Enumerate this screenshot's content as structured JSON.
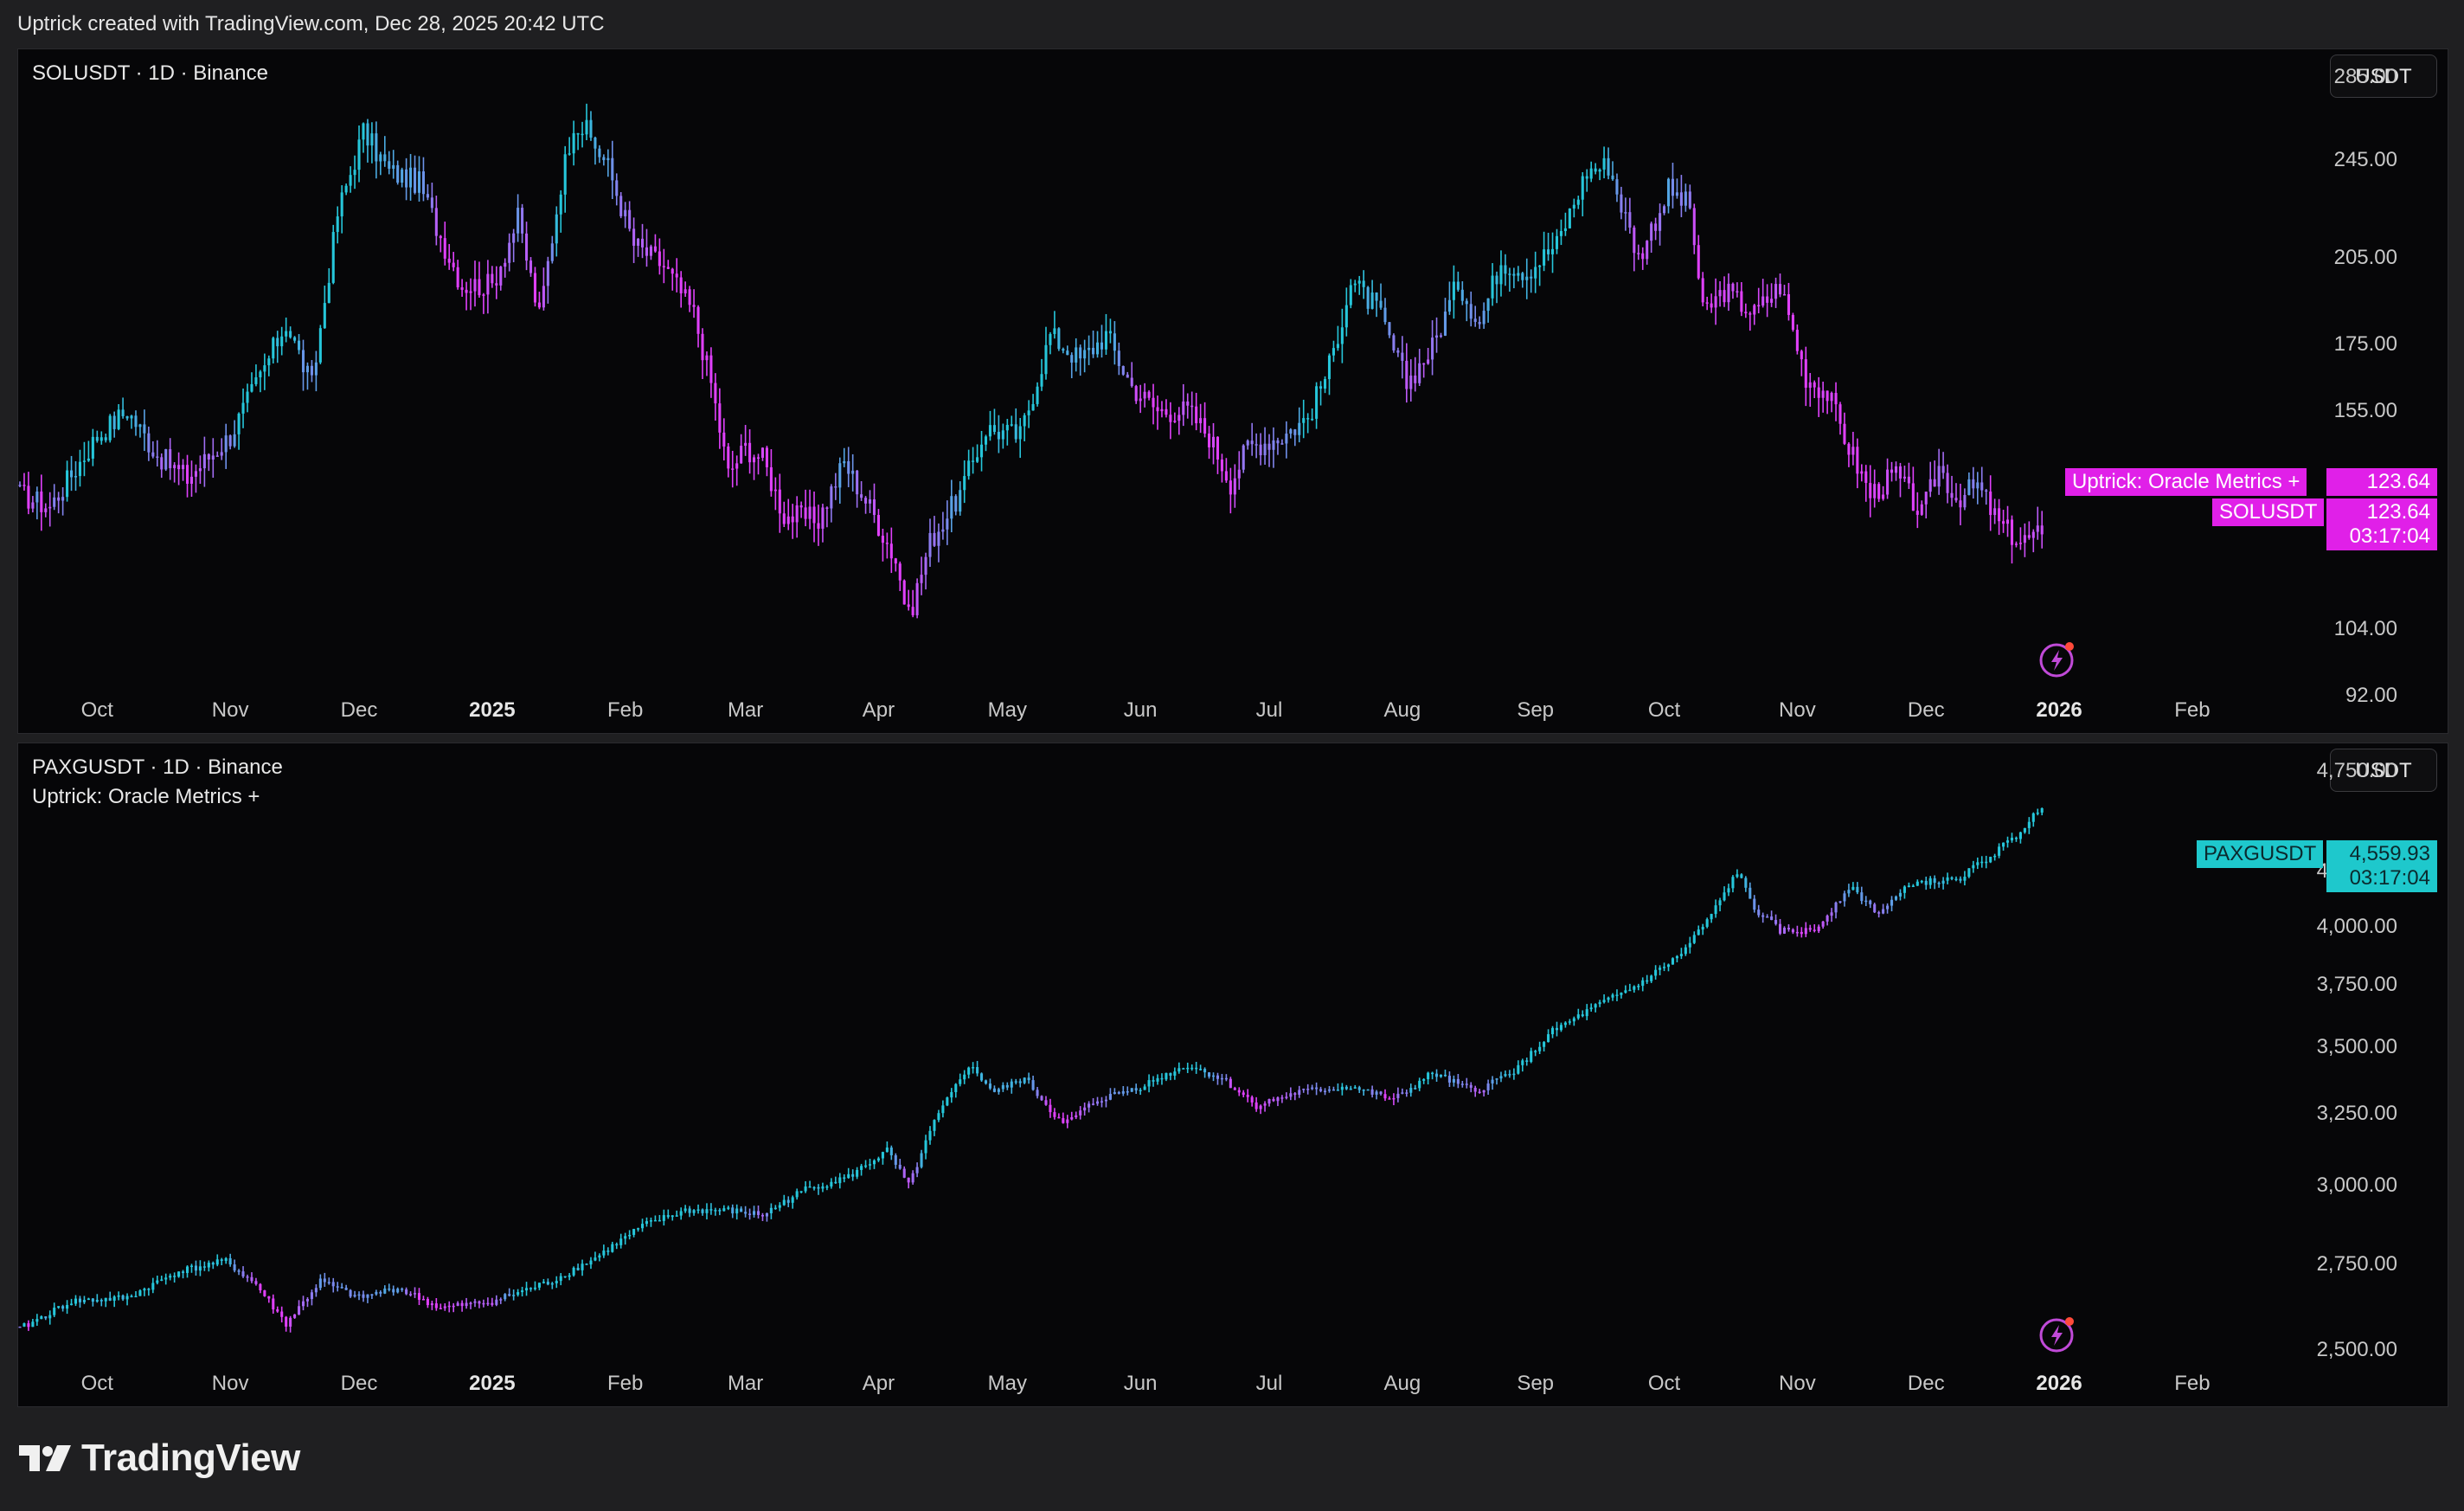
{
  "header": {
    "credit": "Uptrick created with TradingView.com, Dec 28, 2025 20:42 UTC"
  },
  "brand": {
    "name": "TradingView"
  },
  "colors": {
    "background": "#060608",
    "pink": "#e040fb",
    "violet": "#8c7cf0",
    "teal": "#26c6da",
    "sol_tag": "#e020e8",
    "paxg_tag": "#1ec8cc"
  },
  "icons": [
    "flash-icon",
    "tradingview-logo-icon"
  ],
  "chart_data": [
    {
      "type": "candlestick",
      "title": "SOLUSDT · 1D · Binance",
      "currency": "USDT",
      "scale": "log",
      "ylim": [
        86,
        300
      ],
      "y_ticks": [
        "285.00",
        "245.00",
        "205.00",
        "175.00",
        "155.00",
        "104.00",
        "92.00"
      ],
      "x_ticks": [
        "Oct",
        "Nov",
        "Dec",
        "2025",
        "Feb",
        "Mar",
        "Apr",
        "May",
        "Jun",
        "Jul",
        "Aug",
        "Sep",
        "Oct",
        "Nov",
        "Dec",
        "2026",
        "Feb"
      ],
      "x_ticks_bold": [
        "2025",
        "2026"
      ],
      "x_range": [
        "2024-09-13",
        "2026-02-25"
      ],
      "series": [
        {
          "name": "SOLUSDT",
          "path": [
            [
              "2024-09-13",
              133
            ],
            [
              "2024-09-20",
              130
            ],
            [
              "2024-10-01",
              148
            ],
            [
              "2024-10-08",
              155
            ],
            [
              "2024-10-15",
              143
            ],
            [
              "2024-10-22",
              137
            ],
            [
              "2024-11-01",
              148
            ],
            [
              "2024-11-08",
              165
            ],
            [
              "2024-11-14",
              182
            ],
            [
              "2024-11-20",
              162
            ],
            [
              "2024-11-26",
              222
            ],
            [
              "2024-12-02",
              258
            ],
            [
              "2024-12-08",
              240
            ],
            [
              "2024-12-15",
              235
            ],
            [
              "2024-12-20",
              213
            ],
            [
              "2024-12-25",
              195
            ],
            [
              "2025-01-01",
              195
            ],
            [
              "2025-01-07",
              220
            ],
            [
              "2025-01-12",
              184
            ],
            [
              "2025-01-17",
              235
            ],
            [
              "2025-01-20",
              263
            ],
            [
              "2025-01-23",
              258
            ],
            [
              "2025-01-28",
              242
            ],
            [
              "2025-02-03",
              210
            ],
            [
              "2025-02-10",
              202
            ],
            [
              "2025-02-17",
              185
            ],
            [
              "2025-02-21",
              163
            ],
            [
              "2025-02-25",
              138
            ],
            [
              "2025-03-01",
              145
            ],
            [
              "2025-03-05",
              142
            ],
            [
              "2025-03-10",
              128
            ],
            [
              "2025-03-18",
              127
            ],
            [
              "2025-03-24",
              141
            ],
            [
              "2025-03-31",
              128
            ],
            [
              "2025-04-05",
              118
            ],
            [
              "2025-04-08",
              106
            ],
            [
              "2025-04-13",
              122
            ],
            [
              "2025-04-20",
              133
            ],
            [
              "2025-04-26",
              150
            ],
            [
              "2025-05-04",
              148
            ],
            [
              "2025-05-11",
              178
            ],
            [
              "2025-05-18",
              170
            ],
            [
              "2025-05-24",
              178
            ],
            [
              "2025-05-30",
              162
            ],
            [
              "2025-06-05",
              155
            ],
            [
              "2025-06-12",
              155
            ],
            [
              "2025-06-17",
              148
            ],
            [
              "2025-06-22",
              136
            ],
            [
              "2025-06-26",
              145
            ],
            [
              "2025-07-04",
              148
            ],
            [
              "2025-07-10",
              153
            ],
            [
              "2025-07-15",
              168
            ],
            [
              "2025-07-20",
              196
            ],
            [
              "2025-07-26",
              187
            ],
            [
              "2025-08-02",
              163
            ],
            [
              "2025-08-08",
              174
            ],
            [
              "2025-08-14",
              196
            ],
            [
              "2025-08-19",
              182
            ],
            [
              "2025-08-24",
              204
            ],
            [
              "2025-08-30",
              200
            ],
            [
              "2025-09-06",
              210
            ],
            [
              "2025-09-13",
              240
            ],
            [
              "2025-09-18",
              243
            ],
            [
              "2025-09-25",
              205
            ],
            [
              "2025-10-02",
              232
            ],
            [
              "2025-10-07",
              225
            ],
            [
              "2025-10-10",
              185
            ],
            [
              "2025-10-15",
              193
            ],
            [
              "2025-10-22",
              185
            ],
            [
              "2025-10-28",
              195
            ],
            [
              "2025-11-03",
              165
            ],
            [
              "2025-11-08",
              160
            ],
            [
              "2025-11-13",
              145
            ],
            [
              "2025-11-18",
              133
            ],
            [
              "2025-11-24",
              138
            ],
            [
              "2025-11-30",
              128
            ],
            [
              "2025-12-04",
              140
            ],
            [
              "2025-12-08",
              132
            ],
            [
              "2025-12-13",
              135
            ],
            [
              "2025-12-18",
              126
            ],
            [
              "2025-12-23",
              122
            ],
            [
              "2025-12-28",
              123.64
            ]
          ]
        }
      ],
      "last": {
        "label": "SOLUSDT",
        "value": "123.64",
        "countdown": "03:17:04"
      },
      "indicator": {
        "label": "Uptrick: Oracle Metrics +",
        "value": "123.64"
      }
    },
    {
      "type": "candlestick",
      "title": "PAXGUSDT · 1D · Binance",
      "indicator_name": "Uptrick: Oracle Metrics +",
      "currency": "USDT",
      "scale": "log",
      "ylim": [
        2350,
        4900
      ],
      "y_ticks": [
        "4,750.00",
        "4,250.00",
        "4,000.00",
        "3,750.00",
        "3,500.00",
        "3,250.00",
        "3,000.00",
        "2,750.00",
        "2,500.00"
      ],
      "x_ticks": [
        "Oct",
        "Nov",
        "Dec",
        "2025",
        "Feb",
        "Mar",
        "Apr",
        "May",
        "Jun",
        "Jul",
        "Aug",
        "Sep",
        "Oct",
        "Nov",
        "Dec",
        "2026",
        "Feb"
      ],
      "x_ticks_bold": [
        "2025",
        "2026"
      ],
      "x_range": [
        "2024-09-13",
        "2026-02-25"
      ],
      "series": [
        {
          "name": "PAXGUSDT",
          "path": [
            [
              "2024-09-13",
              2560
            ],
            [
              "2024-09-25",
              2640
            ],
            [
              "2024-10-08",
              2650
            ],
            [
              "2024-10-20",
              2730
            ],
            [
              "2024-10-31",
              2760
            ],
            [
              "2024-11-07",
              2690
            ],
            [
              "2024-11-14",
              2575
            ],
            [
              "2024-11-22",
              2700
            ],
            [
              "2024-12-01",
              2650
            ],
            [
              "2024-12-10",
              2680
            ],
            [
              "2024-12-20",
              2620
            ],
            [
              "2025-01-01",
              2640
            ],
            [
              "2025-01-15",
              2700
            ],
            [
              "2025-01-25",
              2770
            ],
            [
              "2025-02-05",
              2870
            ],
            [
              "2025-02-15",
              2920
            ],
            [
              "2025-02-25",
              2920
            ],
            [
              "2025-03-05",
              2905
            ],
            [
              "2025-03-15",
              2990
            ],
            [
              "2025-03-25",
              3030
            ],
            [
              "2025-04-03",
              3120
            ],
            [
              "2025-04-08",
              3000
            ],
            [
              "2025-04-14",
              3220
            ],
            [
              "2025-04-22",
              3430
            ],
            [
              "2025-04-28",
              3330
            ],
            [
              "2025-05-05",
              3380
            ],
            [
              "2025-05-14",
              3210
            ],
            [
              "2025-05-22",
              3300
            ],
            [
              "2025-06-01",
              3350
            ],
            [
              "2025-06-12",
              3430
            ],
            [
              "2025-06-20",
              3380
            ],
            [
              "2025-06-28",
              3280
            ],
            [
              "2025-07-08",
              3330
            ],
            [
              "2025-07-20",
              3350
            ],
            [
              "2025-07-30",
              3300
            ],
            [
              "2025-08-08",
              3400
            ],
            [
              "2025-08-18",
              3330
            ],
            [
              "2025-08-28",
              3420
            ],
            [
              "2025-09-05",
              3560
            ],
            [
              "2025-09-15",
              3660
            ],
            [
              "2025-09-25",
              3750
            ],
            [
              "2025-10-05",
              3880
            ],
            [
              "2025-10-12",
              4050
            ],
            [
              "2025-10-18",
              4250
            ],
            [
              "2025-10-22",
              4080
            ],
            [
              "2025-10-28",
              3980
            ],
            [
              "2025-11-05",
              3980
            ],
            [
              "2025-11-13",
              4180
            ],
            [
              "2025-11-20",
              4060
            ],
            [
              "2025-11-28",
              4200
            ],
            [
              "2025-12-08",
              4210
            ],
            [
              "2025-12-15",
              4310
            ],
            [
              "2025-12-22",
              4420
            ],
            [
              "2025-12-25",
              4500
            ],
            [
              "2025-12-28",
              4559.93
            ]
          ]
        }
      ],
      "last": {
        "label": "PAXGUSDT",
        "value": "4,559.93",
        "countdown": "03:17:04"
      }
    }
  ]
}
